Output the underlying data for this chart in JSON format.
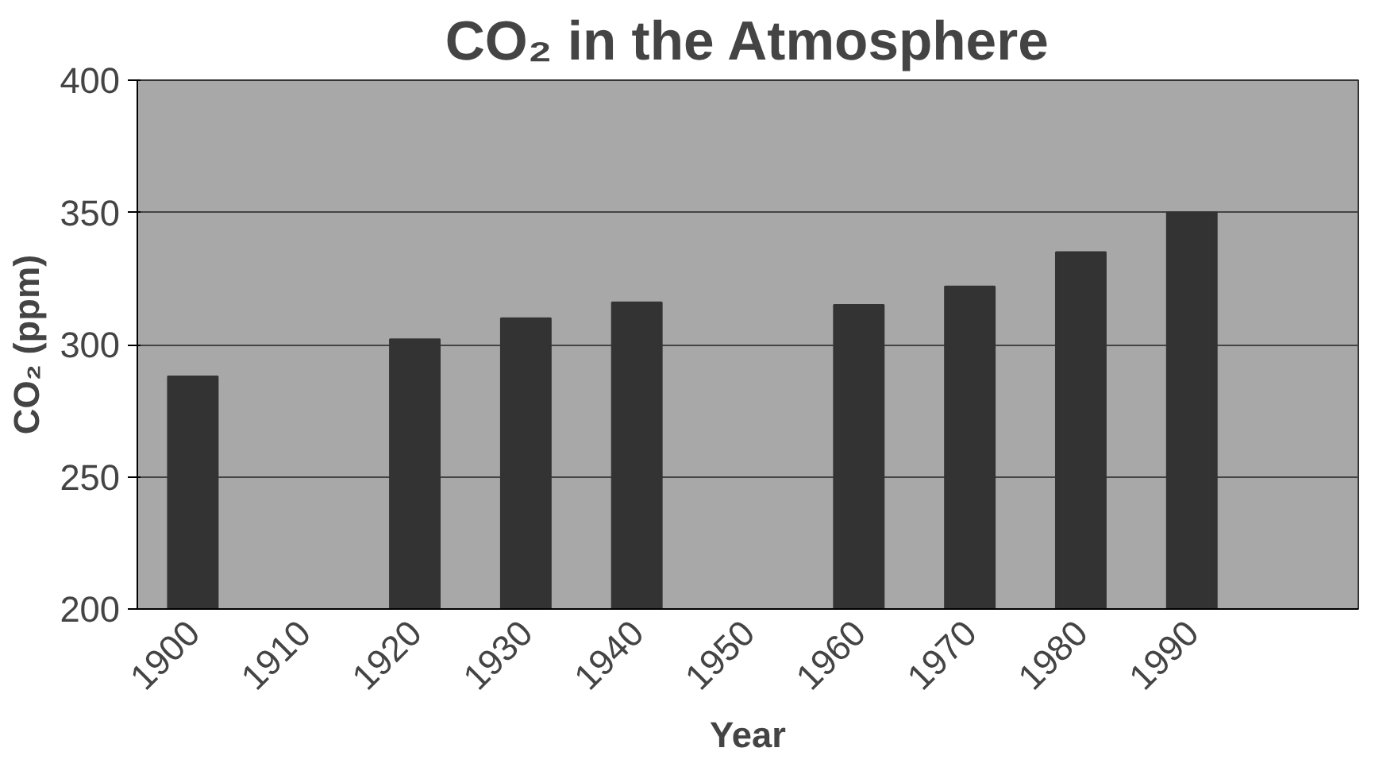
{
  "chart_data": {
    "type": "bar",
    "title": "CO₂ in the Atmosphere",
    "xlabel": "Year",
    "ylabel": "CO₂ (ppm)",
    "categories": [
      "1900",
      "1910",
      "1920",
      "1930",
      "1940",
      "1950",
      "1960",
      "1970",
      "1980",
      "1990",
      null
    ],
    "values": [
      288,
      null,
      302,
      310,
      316,
      null,
      315,
      322,
      335,
      350,
      null
    ],
    "color": "#333333",
    "ylim": [
      200,
      400
    ],
    "yticks": [
      200,
      250,
      300,
      350,
      400
    ],
    "grid": "y"
  }
}
